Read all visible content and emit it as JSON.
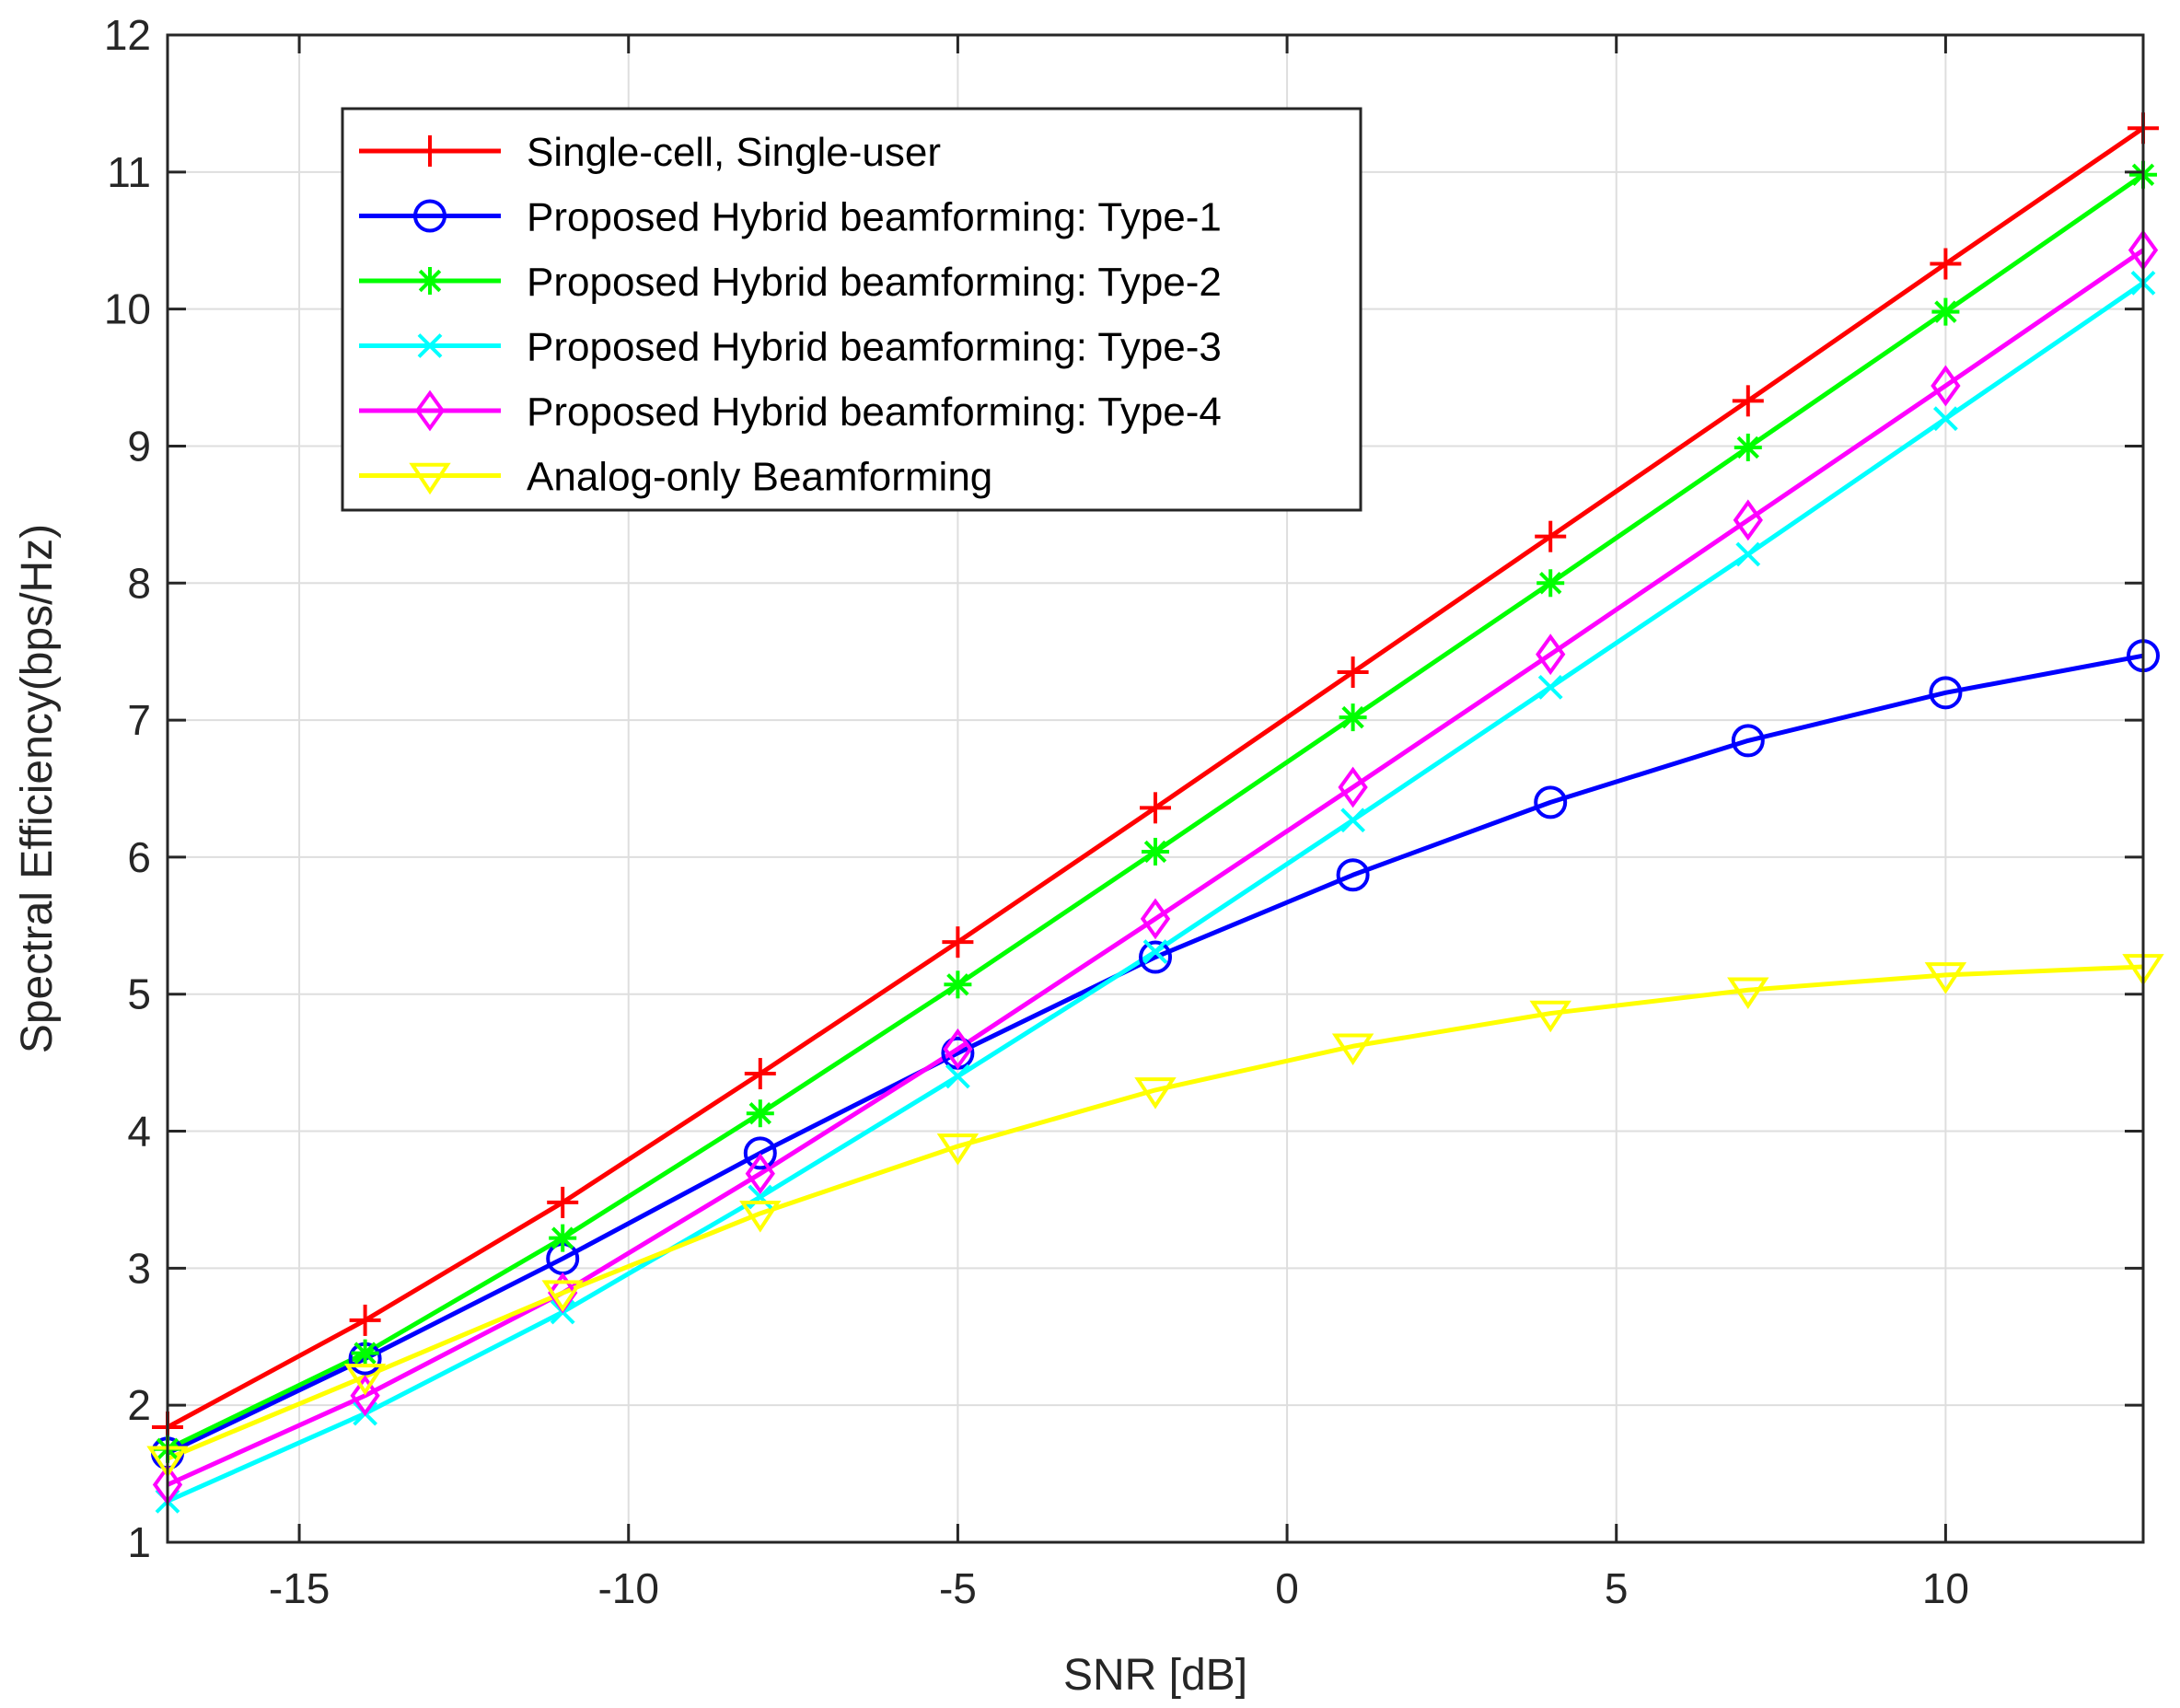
{
  "chart_data": {
    "type": "line",
    "title": "",
    "xlabel": "SNR [dB]",
    "ylabel": "Spectral Efficiency(bps/Hz)",
    "xlim": [
      -17,
      13
    ],
    "ylim": [
      1,
      12
    ],
    "xticks": [
      -15,
      -10,
      -5,
      0,
      5,
      10
    ],
    "xtick_labels": [
      "-15",
      "-10",
      "-5",
      "0",
      "5",
      "10"
    ],
    "yticks": [
      1,
      2,
      3,
      4,
      5,
      6,
      7,
      8,
      9,
      10,
      11,
      12
    ],
    "ytick_labels": [
      "1",
      "2",
      "3",
      "4",
      "5",
      "6",
      "7",
      "8",
      "9",
      "10",
      "11",
      "12"
    ],
    "grid": true,
    "legend_position": "top-left",
    "x": [
      -17,
      -14,
      -11,
      -8,
      -5,
      -2,
      1,
      4,
      7,
      10,
      13
    ],
    "series": [
      {
        "name": "Single-cell, Single-user",
        "color": "#ff0000",
        "marker": "plus",
        "values": [
          1.84,
          2.62,
          3.48,
          4.42,
          5.38,
          6.36,
          7.35,
          8.34,
          9.33,
          10.33,
          11.32
        ]
      },
      {
        "name": "Proposed Hybrid beamforming: Type-1",
        "color": "#0000ff",
        "marker": "circle",
        "values": [
          1.65,
          2.34,
          3.07,
          3.84,
          4.57,
          5.27,
          5.87,
          6.4,
          6.85,
          7.2,
          7.47
        ]
      },
      {
        "name": "Proposed Hybrid beamforming: Type-2",
        "color": "#00ff00",
        "marker": "asterisk",
        "values": [
          1.68,
          2.38,
          3.22,
          4.13,
          5.07,
          6.04,
          7.02,
          8.0,
          8.99,
          9.98,
          10.98
        ]
      },
      {
        "name": "Proposed Hybrid beamforming: Type-3",
        "color": "#00ffff",
        "marker": "x",
        "values": [
          1.3,
          1.94,
          2.68,
          3.52,
          4.4,
          5.31,
          6.27,
          7.24,
          8.21,
          9.2,
          10.19
        ]
      },
      {
        "name": "Proposed Hybrid beamforming: Type-4",
        "color": "#ff00ff",
        "marker": "diamond",
        "values": [
          1.42,
          2.07,
          2.82,
          3.69,
          4.6,
          5.55,
          6.51,
          7.48,
          8.46,
          9.44,
          10.43
        ]
      },
      {
        "name": "Analog-only Beamforming",
        "color": "#ffff00",
        "marker": "triangle-down",
        "values": [
          1.61,
          2.21,
          2.82,
          3.4,
          3.89,
          4.3,
          4.62,
          4.86,
          5.03,
          5.14,
          5.2
        ]
      }
    ]
  }
}
